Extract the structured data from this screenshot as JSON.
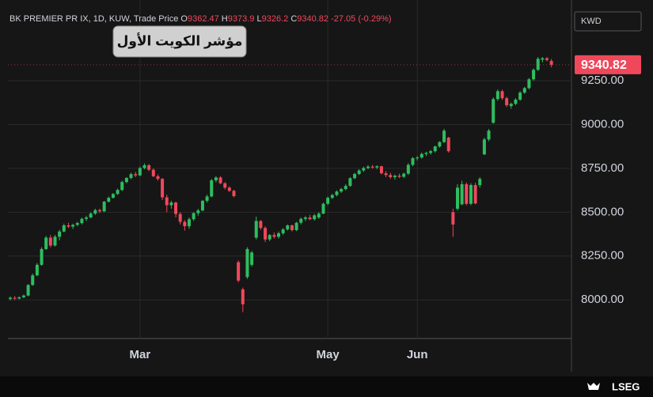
{
  "chart_data": {
    "type": "candlestick",
    "header": {
      "symbol": "BK PREMIER PR IX, 1D, KUW, Trade Price",
      "open_label": "O",
      "high_label": "H",
      "low_label": "L",
      "close_label": "C",
      "change": -27.05,
      "change_pct": {
        "value": -0.29,
        "label": "(-0.29%)"
      }
    },
    "annotation": "مؤشر الكويت الأول",
    "currency": "KWD",
    "brand": "LSEG",
    "up_color": "#2ebd5f",
    "down_color": "#f0485b",
    "ylim": [
      7780,
      9665
    ],
    "yticks": [
      {
        "value": 8000,
        "label": "8000.00"
      },
      {
        "value": 8250,
        "label": "8250.00"
      },
      {
        "value": 8500,
        "label": "8500.00"
      },
      {
        "value": 8750,
        "label": "8750.00"
      },
      {
        "value": 9000,
        "label": "9000.00"
      },
      {
        "value": 9250,
        "label": "9250.00"
      }
    ],
    "grid": true,
    "categories": [
      null,
      null,
      null,
      null,
      null,
      null,
      null,
      null,
      null,
      null,
      null,
      null,
      null,
      null,
      null,
      null,
      null,
      null,
      null,
      null,
      null,
      null,
      null,
      null,
      null,
      null,
      null,
      null,
      null,
      "Mar",
      null,
      null,
      null,
      null,
      null,
      null,
      null,
      null,
      null,
      null,
      null,
      null,
      null,
      null,
      null,
      null,
      null,
      null,
      null,
      null,
      null,
      null,
      null,
      null,
      null,
      null,
      null,
      null,
      null,
      null,
      null,
      null,
      null,
      null,
      null,
      null,
      null,
      null,
      null,
      null,
      null,
      "May",
      null,
      null,
      null,
      null,
      null,
      null,
      null,
      null,
      null,
      null,
      null,
      null,
      null,
      null,
      null,
      null,
      null,
      null,
      null,
      "Jun",
      null,
      null,
      null,
      null,
      null,
      null,
      null,
      null,
      null,
      null,
      null,
      null,
      null,
      null,
      null,
      null,
      null,
      null,
      null,
      null,
      null,
      null,
      null,
      null,
      null,
      null,
      null,
      null,
      null
    ],
    "candles": [
      [
        8005,
        8020,
        7998,
        8012
      ],
      [
        8012,
        8022,
        8000,
        8008
      ],
      [
        8008,
        8020,
        8002,
        8015
      ],
      [
        8015,
        8030,
        8010,
        8025
      ],
      [
        8025,
        8090,
        8020,
        8085
      ],
      [
        8085,
        8150,
        8080,
        8140
      ],
      [
        8140,
        8210,
        8135,
        8200
      ],
      [
        8200,
        8300,
        8195,
        8290
      ],
      [
        8290,
        8365,
        8285,
        8355
      ],
      [
        8355,
        8370,
        8300,
        8310
      ],
      [
        8310,
        8370,
        8305,
        8360
      ],
      [
        8360,
        8400,
        8340,
        8390
      ],
      [
        8390,
        8435,
        8385,
        8425
      ],
      [
        8425,
        8440,
        8410,
        8418
      ],
      [
        8418,
        8435,
        8405,
        8428
      ],
      [
        8428,
        8445,
        8420,
        8438
      ],
      [
        8438,
        8470,
        8430,
        8462
      ],
      [
        8462,
        8480,
        8450,
        8470
      ],
      [
        8470,
        8500,
        8465,
        8492
      ],
      [
        8492,
        8520,
        8485,
        8512
      ],
      [
        8512,
        8520,
        8495,
        8505
      ],
      [
        8505,
        8565,
        8500,
        8560
      ],
      [
        8560,
        8590,
        8555,
        8582
      ],
      [
        8582,
        8610,
        8578,
        8604
      ],
      [
        8604,
        8635,
        8598,
        8627
      ],
      [
        8627,
        8680,
        8620,
        8672
      ],
      [
        8672,
        8700,
        8665,
        8695
      ],
      [
        8695,
        8725,
        8688,
        8717
      ],
      [
        8717,
        8730,
        8700,
        8710
      ],
      [
        8710,
        8760,
        8705,
        8752
      ],
      [
        8752,
        8778,
        8745,
        8768
      ],
      [
        8768,
        8775,
        8735,
        8742
      ],
      [
        8742,
        8750,
        8700,
        8705
      ],
      [
        8705,
        8715,
        8680,
        8690
      ],
      [
        8690,
        8695,
        8570,
        8585
      ],
      [
        8585,
        8600,
        8500,
        8540
      ],
      [
        8540,
        8565,
        8520,
        8555
      ],
      [
        8555,
        8560,
        8470,
        8490
      ],
      [
        8490,
        8500,
        8430,
        8445
      ],
      [
        8445,
        8455,
        8395,
        8420
      ],
      [
        8420,
        8470,
        8405,
        8460
      ],
      [
        8460,
        8500,
        8450,
        8495
      ],
      [
        8495,
        8520,
        8480,
        8510
      ],
      [
        8510,
        8570,
        8505,
        8565
      ],
      [
        8565,
        8600,
        8555,
        8590
      ],
      [
        8590,
        8690,
        8585,
        8682
      ],
      [
        8682,
        8705,
        8670,
        8698
      ],
      [
        8698,
        8705,
        8660,
        8665
      ],
      [
        8665,
        8672,
        8630,
        8640
      ],
      [
        8640,
        8648,
        8615,
        8622
      ],
      [
        8622,
        8628,
        8585,
        8592
      ],
      [
        8215,
        8225,
        8100,
        8110
      ],
      [
        8060,
        8070,
        7930,
        7975
      ],
      [
        8130,
        8300,
        8120,
        8290
      ],
      [
        8200,
        8280,
        8190,
        8270
      ],
      [
        8355,
        8475,
        8345,
        8450
      ],
      [
        8450,
        8455,
        8400,
        8410
      ],
      [
        8410,
        8420,
        8330,
        8345
      ],
      [
        8345,
        8375,
        8335,
        8370
      ],
      [
        8370,
        8385,
        8350,
        8360
      ],
      [
        8360,
        8390,
        8350,
        8380
      ],
      [
        8380,
        8410,
        8370,
        8402
      ],
      [
        8402,
        8430,
        8395,
        8425
      ],
      [
        8425,
        8430,
        8390,
        8398
      ],
      [
        8398,
        8445,
        8392,
        8440
      ],
      [
        8440,
        8470,
        8430,
        8462
      ],
      [
        8462,
        8478,
        8450,
        8470
      ],
      [
        8470,
        8485,
        8455,
        8460
      ],
      [
        8460,
        8490,
        8452,
        8482
      ],
      [
        8470,
        8500,
        8462,
        8492
      ],
      [
        8492,
        8555,
        8488,
        8548
      ],
      [
        8548,
        8590,
        8540,
        8582
      ],
      [
        8582,
        8605,
        8575,
        8598
      ],
      [
        8598,
        8625,
        8590,
        8618
      ],
      [
        8618,
        8640,
        8610,
        8632
      ],
      [
        8632,
        8660,
        8625,
        8650
      ],
      [
        8650,
        8700,
        8645,
        8694
      ],
      [
        8694,
        8725,
        8688,
        8718
      ],
      [
        8718,
        8745,
        8712,
        8738
      ],
      [
        8738,
        8760,
        8730,
        8752
      ],
      [
        8752,
        8768,
        8745,
        8760
      ],
      [
        8760,
        8770,
        8748,
        8755
      ],
      [
        8755,
        8768,
        8745,
        8762
      ],
      [
        8762,
        8765,
        8715,
        8722
      ],
      [
        8722,
        8735,
        8700,
        8712
      ],
      [
        8712,
        8725,
        8690,
        8700
      ],
      [
        8700,
        8715,
        8685,
        8708
      ],
      [
        8708,
        8720,
        8695,
        8702
      ],
      [
        8702,
        8725,
        8695,
        8720
      ],
      [
        8720,
        8780,
        8712,
        8770
      ],
      [
        8770,
        8815,
        8762,
        8808
      ],
      [
        8808,
        8820,
        8795,
        8812
      ],
      [
        8812,
        8840,
        8805,
        8832
      ],
      [
        8832,
        8845,
        8820,
        8838
      ],
      [
        8838,
        8855,
        8828,
        8848
      ],
      [
        8848,
        8880,
        8840,
        8875
      ],
      [
        8875,
        8905,
        8868,
        8900
      ],
      [
        8900,
        8975,
        8895,
        8965
      ],
      [
        8925,
        8930,
        8840,
        8848
      ],
      [
        8500,
        8520,
        8360,
        8430
      ],
      [
        8520,
        8660,
        8510,
        8640
      ],
      [
        8545,
        8680,
        8540,
        8660
      ],
      [
        8660,
        8670,
        8540,
        8548
      ],
      [
        8548,
        8665,
        8540,
        8655
      ],
      [
        8655,
        8668,
        8545,
        8550
      ],
      [
        8655,
        8700,
        8640,
        8690
      ],
      [
        8830,
        8925,
        8825,
        8915
      ],
      [
        8915,
        8975,
        8905,
        8965
      ],
      [
        9010,
        9155,
        9005,
        9145
      ],
      [
        9145,
        9200,
        9135,
        9190
      ],
      [
        9190,
        9198,
        9140,
        9150
      ],
      [
        9150,
        9158,
        9100,
        9110
      ],
      [
        9105,
        9125,
        9090,
        9118
      ],
      [
        9118,
        9150,
        9110,
        9142
      ],
      [
        9142,
        9190,
        9135,
        9182
      ],
      [
        9182,
        9215,
        9175,
        9208
      ],
      [
        9208,
        9265,
        9200,
        9258
      ],
      [
        9258,
        9320,
        9250,
        9312
      ],
      [
        9312,
        9385,
        9305,
        9375
      ],
      [
        9370,
        9385,
        9355,
        9378
      ],
      [
        9378,
        9385,
        9360,
        9368
      ],
      [
        9362.47,
        9373.9,
        9326.2,
        9340.82
      ]
    ]
  }
}
